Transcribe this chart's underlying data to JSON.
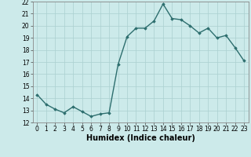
{
  "x": [
    0,
    1,
    2,
    3,
    4,
    5,
    6,
    7,
    8,
    9,
    10,
    11,
    12,
    13,
    14,
    15,
    16,
    17,
    18,
    19,
    20,
    21,
    22,
    23
  ],
  "y": [
    14.3,
    13.5,
    13.1,
    12.8,
    13.3,
    12.9,
    12.5,
    12.7,
    12.8,
    16.8,
    19.1,
    19.8,
    19.8,
    20.4,
    21.8,
    20.6,
    20.5,
    20.0,
    19.4,
    19.8,
    19.0,
    19.2,
    18.2,
    17.1
  ],
  "line_color": "#2d6e6e",
  "marker": "D",
  "marker_size": 1.8,
  "line_width": 1.0,
  "xlabel": "Humidex (Indice chaleur)",
  "ylim": [
    12,
    22
  ],
  "xlim": [
    -0.5,
    23.5
  ],
  "yticks": [
    12,
    13,
    14,
    15,
    16,
    17,
    18,
    19,
    20,
    21,
    22
  ],
  "xticks": [
    0,
    1,
    2,
    3,
    4,
    5,
    6,
    7,
    8,
    9,
    10,
    11,
    12,
    13,
    14,
    15,
    16,
    17,
    18,
    19,
    20,
    21,
    22,
    23
  ],
  "bg_color": "#cceaea",
  "grid_color": "#aad0d0",
  "tick_label_fontsize": 5.5,
  "xlabel_fontsize": 7.0
}
